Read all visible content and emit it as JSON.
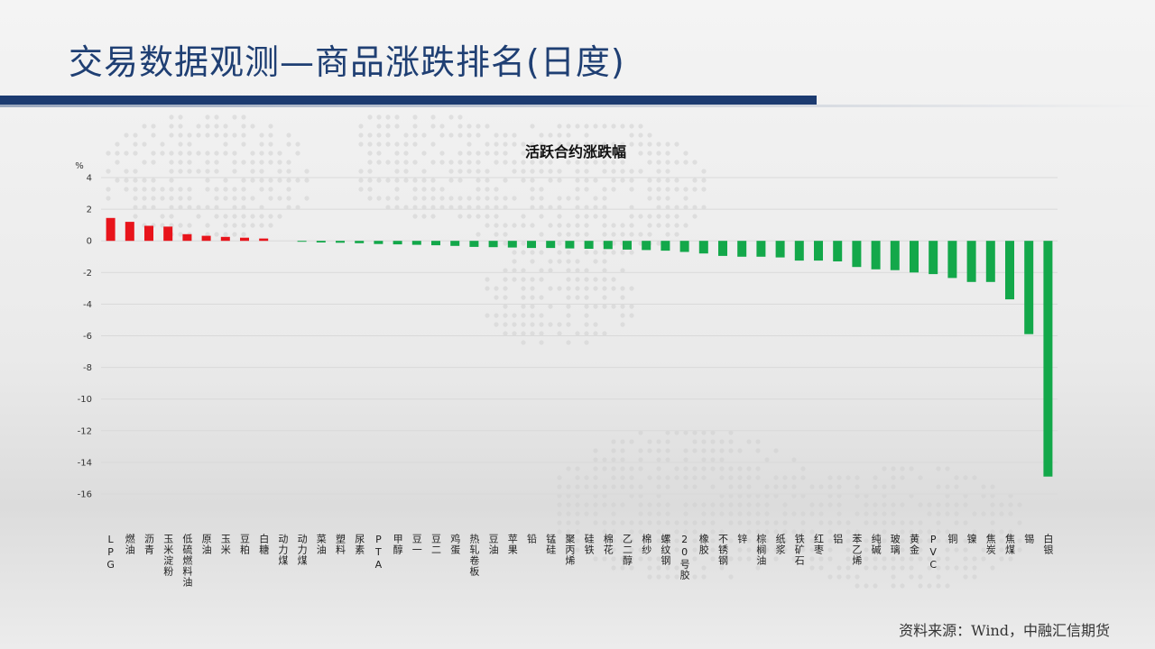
{
  "slide": {
    "title": "交易数据观测—商品涨跌排名(日度)",
    "source": "资料来源：Wind，中融汇信期货"
  },
  "colors": {
    "title": "#1f3f73",
    "title_bar": "#1c3b70",
    "up": "#e8141b",
    "down": "#13a84a",
    "grid": "#d9d9d9"
  },
  "chart_data": {
    "type": "bar",
    "title": "活跃合约涨跌幅",
    "ylabel": "%",
    "ylim": [
      -16,
      4
    ],
    "yticks": [
      4,
      2,
      0,
      -2,
      -4,
      -6,
      -8,
      -10,
      -12,
      -14,
      -16
    ],
    "grid": true,
    "categories": [
      "LPG",
      "燃油",
      "沥青",
      "玉米淀粉",
      "低硫燃料油",
      "原油",
      "玉米",
      "豆粕",
      "白糖",
      "动力煤",
      "动力煤",
      "菜油",
      "塑料",
      "尿素",
      "PTA",
      "甲醇",
      "豆一",
      "豆二",
      "鸡蛋",
      "热轧卷板",
      "豆油",
      "苹果",
      "铅",
      "锰硅",
      "聚丙烯",
      "硅铁",
      "棉花",
      "乙二醇",
      "棉纱",
      "螺纹钢",
      "20号胶",
      "橡胶",
      "不锈钢",
      "锌",
      "棕榈油",
      "纸浆",
      "铁矿石",
      "红枣",
      "铝",
      "苯乙烯",
      "纯碱",
      "玻璃",
      "黄金",
      "PVC",
      "铜",
      "镍",
      "焦炭",
      "焦煤",
      "锡",
      "白银"
    ],
    "values": [
      1.45,
      1.2,
      0.95,
      0.9,
      0.42,
      0.32,
      0.25,
      0.2,
      0.15,
      0,
      -0.05,
      -0.1,
      -0.12,
      -0.15,
      -0.2,
      -0.22,
      -0.25,
      -0.28,
      -0.32,
      -0.38,
      -0.4,
      -0.42,
      -0.45,
      -0.45,
      -0.48,
      -0.5,
      -0.52,
      -0.55,
      -0.58,
      -0.62,
      -0.7,
      -0.8,
      -0.95,
      -1.0,
      -1.0,
      -1.05,
      -1.25,
      -1.25,
      -1.3,
      -1.65,
      -1.8,
      -1.85,
      -2.0,
      -2.1,
      -2.35,
      -2.6,
      -2.6,
      -3.7,
      -5.9,
      -14.9
    ]
  }
}
